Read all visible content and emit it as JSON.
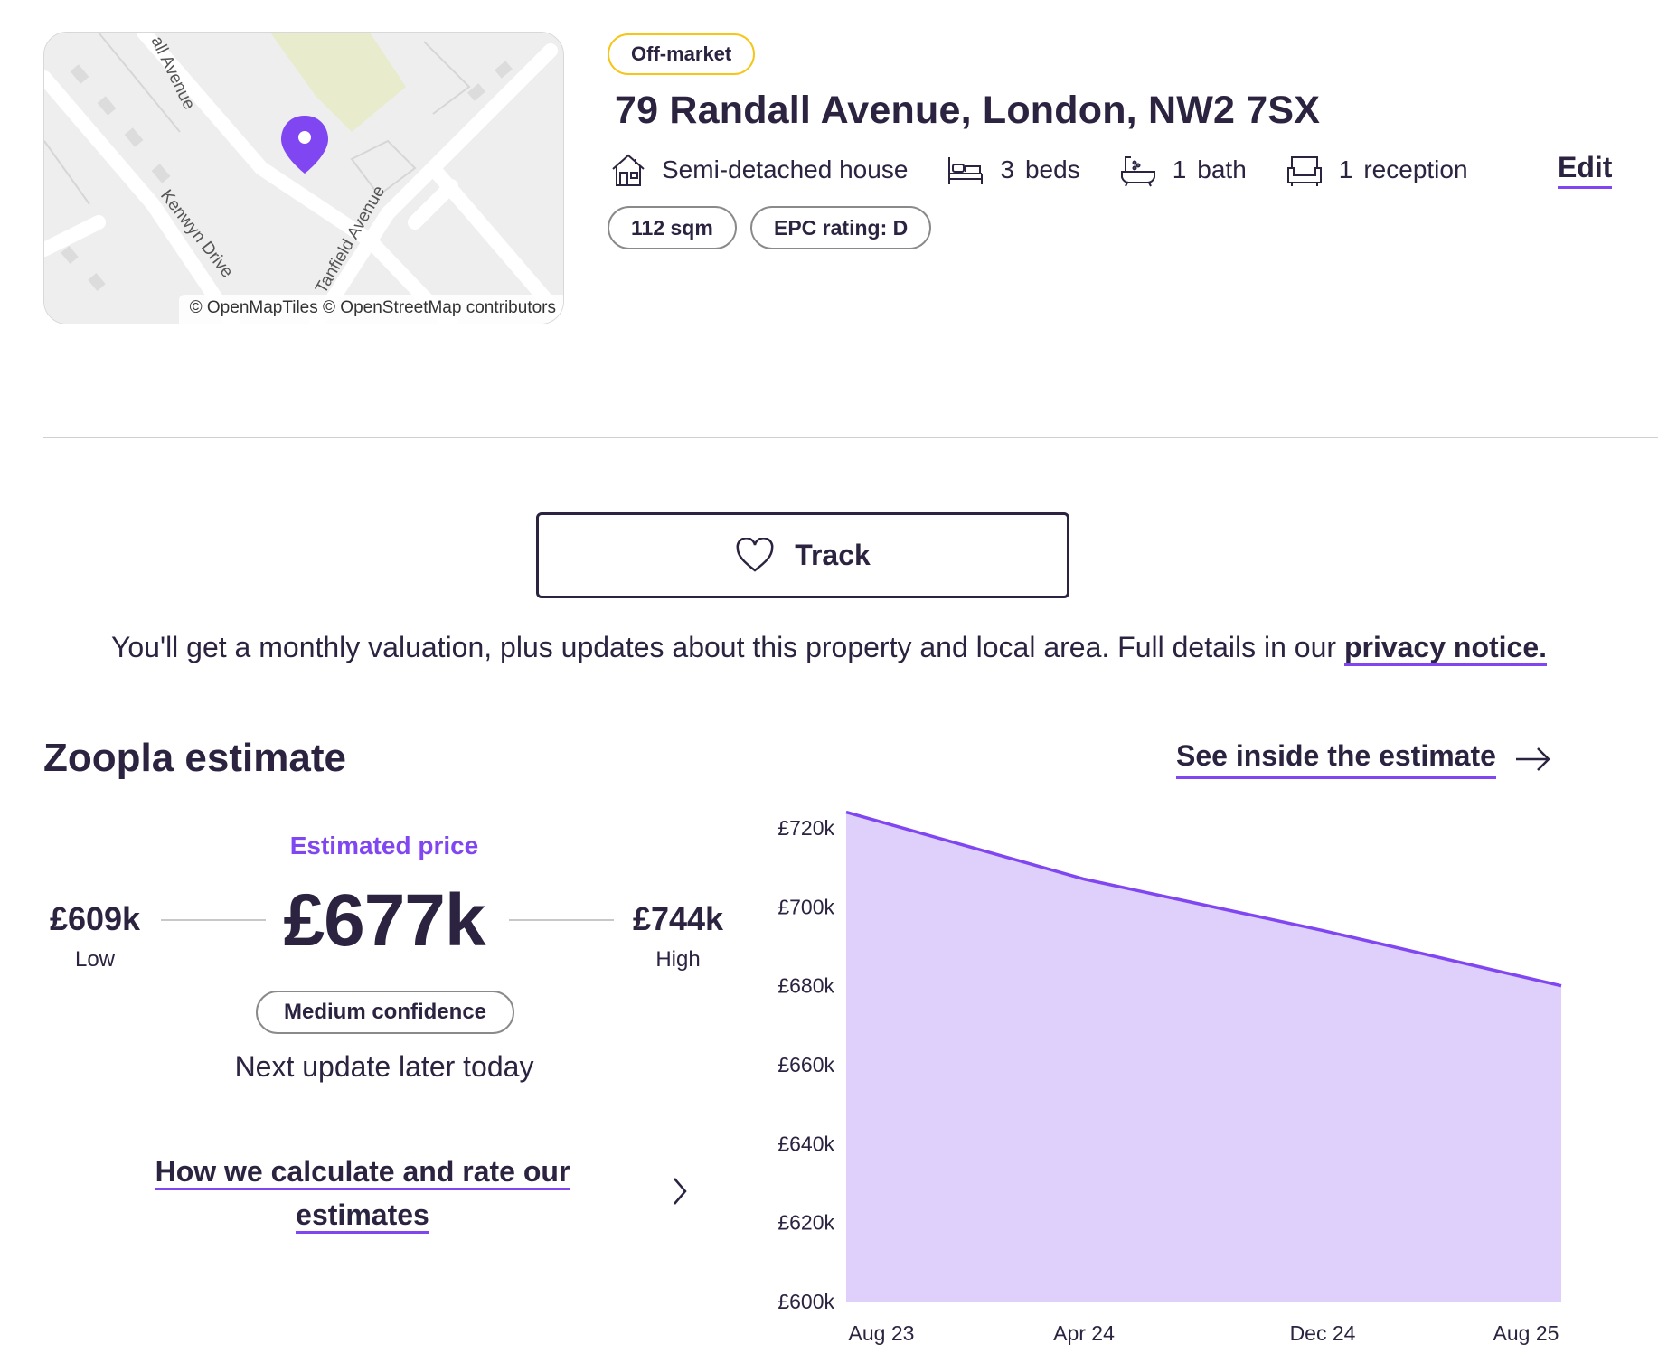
{
  "map": {
    "attribution": "© OpenMapTiles © OpenStreetMap contributors",
    "street_labels": [
      "all Avenue",
      "Kenwyn Drive",
      "Tanfield Avenue"
    ],
    "pin_color": "#8046f1"
  },
  "property": {
    "status_badge": "Off-market",
    "address": "79 Randall Avenue, London, NW2 7SX",
    "type": "Semi-detached house",
    "beds_count": "3",
    "beds_label": "beds",
    "bath_count": "1",
    "bath_label": "bath",
    "reception_count": "1",
    "reception_label": "reception",
    "edit_label": "Edit",
    "size": "112 sqm",
    "epc": "EPC rating: D"
  },
  "track": {
    "button_label": "Track",
    "notice_text": "You'll get a monthly valuation, plus updates about this property and local area. Full details in our ",
    "notice_link": "privacy notice."
  },
  "estimate": {
    "title": "Zoopla estimate",
    "see_inside_label": "See inside the estimate",
    "estimated_label": "Estimated price",
    "value": "£677k",
    "low": "£609k",
    "low_label": "Low",
    "high": "£744k",
    "high_label": "High",
    "confidence": "Medium confidence",
    "next_update": "Next update later today",
    "how_calc_label": "How we calculate and rate our estimates"
  },
  "colors": {
    "accent": "#8046f1",
    "chart_fill": "#dfd0fb",
    "text": "#2b2340",
    "badge_border": "#f5c518"
  },
  "chart_data": {
    "type": "area",
    "x": [
      "Aug 23",
      "Apr 24",
      "Dec 24",
      "Aug 25"
    ],
    "series": [
      {
        "values": [
          724,
          707,
          694,
          680
        ]
      }
    ],
    "y_ticks": [
      "£720k",
      "£700k",
      "£680k",
      "£660k",
      "£640k",
      "£620k",
      "£600k"
    ],
    "ylim": [
      600,
      720
    ],
    "grid": false
  }
}
